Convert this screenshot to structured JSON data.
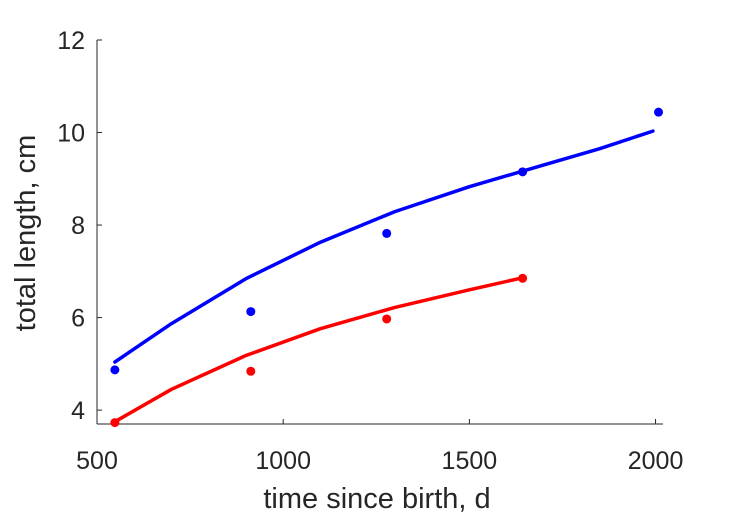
{
  "chart_data": {
    "type": "scatter",
    "title": "",
    "xlabel": "time since birth, d",
    "ylabel": "total length, cm",
    "xlim": [
      500,
      2020
    ],
    "ylim": [
      3.7,
      12
    ],
    "xticks": [
      500,
      1000,
      1500,
      2000
    ],
    "yticks": [
      4,
      6,
      8,
      10,
      12
    ],
    "grid": false,
    "series": [
      {
        "color": "#0000ff",
        "points": {
          "x": [
            548,
            913,
            1278,
            1643,
            2008
          ],
          "y": [
            4.87,
            6.13,
            7.82,
            9.15,
            10.44
          ]
        },
        "fit": {
          "x": [
            548,
            700,
            900,
            1100,
            1300,
            1500,
            1700,
            1850,
            1993
          ],
          "y": [
            5.04,
            5.87,
            6.84,
            7.63,
            8.29,
            8.83,
            9.3,
            9.65,
            10.03
          ]
        }
      },
      {
        "color": "#ff0000",
        "points": {
          "x": [
            548,
            913,
            1278,
            1643
          ],
          "y": [
            3.73,
            4.84,
            5.97,
            6.85
          ]
        },
        "fit": {
          "x": [
            548,
            700,
            900,
            1100,
            1300,
            1500,
            1643
          ],
          "y": [
            3.75,
            4.45,
            5.18,
            5.76,
            6.22,
            6.6,
            6.86
          ]
        }
      }
    ]
  }
}
